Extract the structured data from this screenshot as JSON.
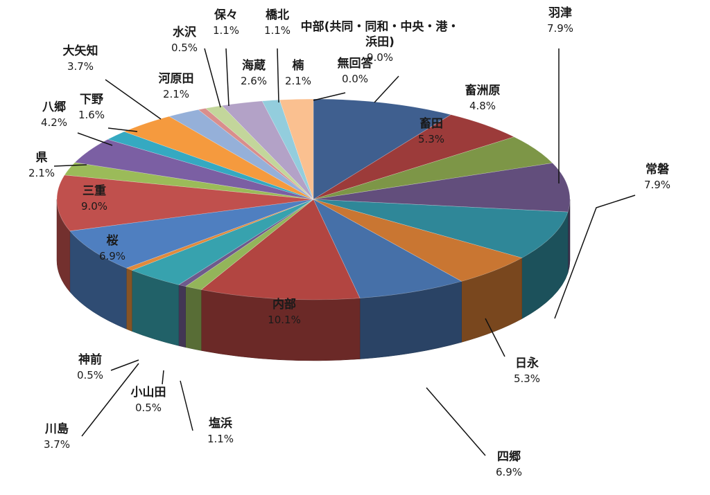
{
  "chart_data": {
    "type": "pie",
    "style": "3d",
    "start_at": "12 o'clock",
    "direction": "clockwise",
    "slices": [
      {
        "name": "中部（共同・同和・中央・港・浜田）",
        "label_lines": [
          "中部(共同・同和・中央・港・",
          "浜田)"
        ],
        "value_label": "9.0%",
        "value": 9.0,
        "color": "#3f5f8f"
      },
      {
        "name": "畜田",
        "label_lines": [
          "畜田"
        ],
        "value_label": "5.3%",
        "value": 5.3,
        "color": "#9c3b3a"
      },
      {
        "name": "畜洲原",
        "label_lines": [
          "畜洲原"
        ],
        "value_label": "4.8%",
        "value": 4.8,
        "color": "#7d9647"
      },
      {
        "name": "羽津",
        "label_lines": [
          "羽津"
        ],
        "value_label": "7.9%",
        "value": 7.9,
        "color": "#624e7c"
      },
      {
        "name": "常磐",
        "label_lines": [
          "常磐"
        ],
        "value_label": "7.9%",
        "value": 7.9,
        "color": "#2f8798"
      },
      {
        "name": "日永",
        "label_lines": [
          "日永"
        ],
        "value_label": "5.3%",
        "value": 5.3,
        "color": "#c97632"
      },
      {
        "name": "四郷",
        "label_lines": [
          "四郷"
        ],
        "value_label": "6.9%",
        "value": 6.9,
        "color": "#4670a8"
      },
      {
        "name": "内部",
        "label_lines": [
          "内部"
        ],
        "value_label": "10.1%",
        "value": 10.1,
        "color": "#b24541"
      },
      {
        "name": "塩浜",
        "label_lines": [
          "塩浜"
        ],
        "value_label": "1.1%",
        "value": 1.1,
        "color": "#93b55a"
      },
      {
        "name": "小山田",
        "label_lines": [
          "小山田"
        ],
        "value_label": "0.5%",
        "value": 0.5,
        "color": "#6e5a8c"
      },
      {
        "name": "川島",
        "label_lines": [
          "川島"
        ],
        "value_label": "3.7%",
        "value": 3.7,
        "color": "#37a2ae"
      },
      {
        "name": "神前",
        "label_lines": [
          "神前"
        ],
        "value_label": "0.5%",
        "value": 0.5,
        "color": "#e08a3c"
      },
      {
        "name": "桜",
        "label_lines": [
          "桜"
        ],
        "value_label": "6.9%",
        "value": 6.9,
        "color": "#4f7fc0"
      },
      {
        "name": "三重",
        "label_lines": [
          "三重"
        ],
        "value_label": "9.0%",
        "value": 9.0,
        "color": "#c0504d"
      },
      {
        "name": "県",
        "label_lines": [
          "県"
        ],
        "value_label": "2.1%",
        "value": 2.1,
        "color": "#9bbb59"
      },
      {
        "name": "八郷",
        "label_lines": [
          "八郷"
        ],
        "value_label": "4.2%",
        "value": 4.2,
        "color": "#7b5fa3"
      },
      {
        "name": "下野",
        "label_lines": [
          "下野"
        ],
        "value_label": "1.6%",
        "value": 1.6,
        "color": "#35a9c1"
      },
      {
        "name": "大矢知",
        "label_lines": [
          "大矢知"
        ],
        "value_label": "3.7%",
        "value": 3.7,
        "color": "#f59a3e"
      },
      {
        "name": "河原田",
        "label_lines": [
          "河原田"
        ],
        "value_label": "2.1%",
        "value": 2.1,
        "color": "#95b0d9"
      },
      {
        "name": "水沢",
        "label_lines": [
          "水沢"
        ],
        "value_label": "0.5%",
        "value": 0.5,
        "color": "#d98e8c"
      },
      {
        "name": "保々",
        "label_lines": [
          "保々"
        ],
        "value_label": "1.1%",
        "value": 1.1,
        "color": "#c3d69b"
      },
      {
        "name": "海蔵",
        "label_lines": [
          "海蔵"
        ],
        "value_label": "2.6%",
        "value": 2.6,
        "color": "#b3a2c7"
      },
      {
        "name": "橋北",
        "label_lines": [
          "橋北"
        ],
        "value_label": "1.1%",
        "value": 1.1,
        "color": "#93cddd"
      },
      {
        "name": "楠",
        "label_lines": [
          "楠"
        ],
        "value_label": "2.1%",
        "value": 2.1,
        "color": "#fac090"
      },
      {
        "name": "無回答",
        "label_lines": [
          "無回答"
        ],
        "value_label": "0.0%",
        "value": 0.0,
        "color": "#4f81bd"
      }
    ]
  }
}
